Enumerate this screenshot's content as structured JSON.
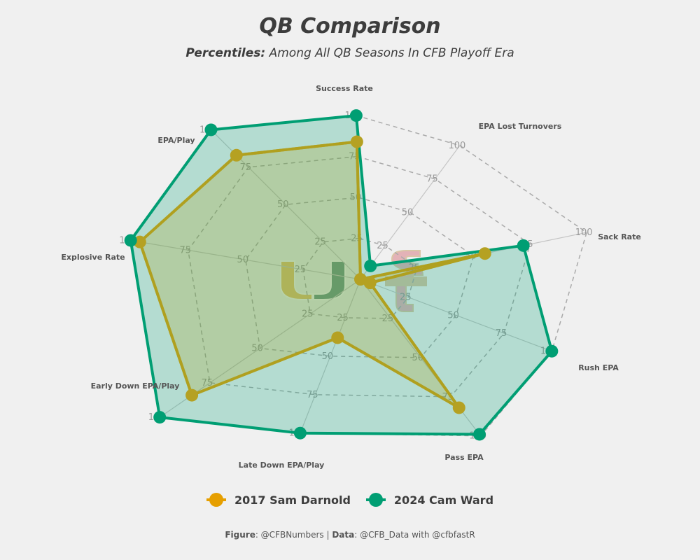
{
  "header": {
    "title": "QB Comparison",
    "subtitle_bold": "Percentiles:",
    "subtitle_rest": " Among All QB Seasons In CFB Playoff Era"
  },
  "footer": {
    "figure_label": "Figure",
    "figure_value": ": @CFBNumbers | ",
    "data_label": "Data",
    "data_value": ": @CFB_Data with @cfbfastR"
  },
  "legend": {
    "darnold": "2017 Sam Darnold",
    "ward": "2024 Cam Ward"
  },
  "colors": {
    "darnold": "#e69f00",
    "ward": "#009e73",
    "background": "#f0f0f0",
    "grid": "#aaaaaa",
    "logo_miami_orange": "#e69f00",
    "logo_miami_green": "#005030",
    "logo_usc_red": "#d9808a",
    "logo_usc_gold": "#c9a26b"
  },
  "chart_data": {
    "type": "radar",
    "categories": [
      "Success Rate",
      "EPA Lost Turnovers",
      "Sack Rate",
      "Rush EPA",
      "Pass EPA",
      "Late Down EPA/Play",
      "Early Down EPA/Play",
      "Explosive Rate",
      "EPA/Play"
    ],
    "ticks": [
      25,
      50,
      75,
      100
    ],
    "range": [
      0,
      100
    ],
    "grid": "dashed",
    "legend_position": "bottom",
    "series": [
      {
        "name": "2017 Sam Darnold",
        "color": "#e69f00",
        "values": [
          84,
          0,
          55,
          5,
          82,
          38,
          84,
          96,
          83
        ]
      },
      {
        "name": "2024 Cam Ward",
        "color": "#009e73",
        "values": [
          100,
          10,
          72,
          100,
          99,
          100,
          100,
          100,
          100
        ]
      }
    ]
  }
}
